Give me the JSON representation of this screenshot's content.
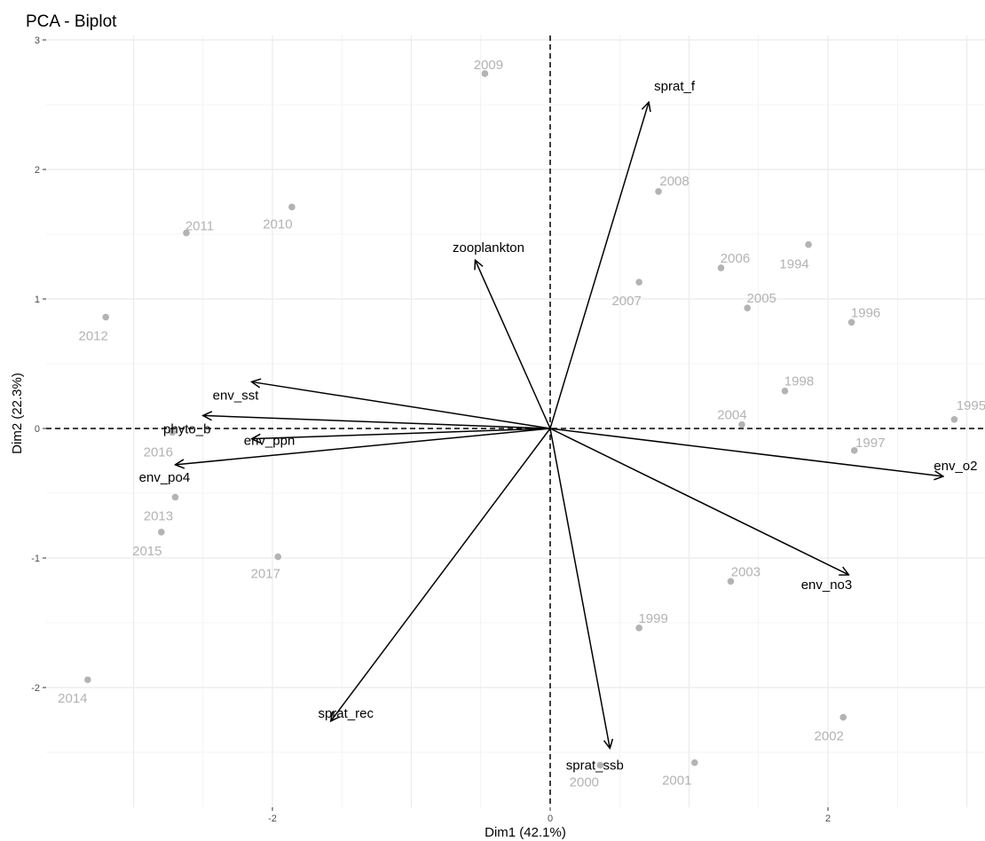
{
  "chart_data": {
    "type": "scatter",
    "title": "PCA - Biplot",
    "xlabel": "Dim1 (42.1%)",
    "ylabel": "Dim2 (22.3%)",
    "xlim": [
      -3.45,
      3.1
    ],
    "ylim": [
      -2.75,
      3.0
    ],
    "xticks": [
      -2,
      0,
      2
    ],
    "yticks": [
      -2,
      -1,
      0,
      1,
      2,
      3
    ],
    "grid": true,
    "colors": {
      "points": "#b3b3b3",
      "arrows": "#000000",
      "grid": "#ebebeb"
    },
    "points": [
      {
        "label": "1994",
        "x": 1.86,
        "y": 1.42
      },
      {
        "label": "1995",
        "x": 2.91,
        "y": 0.07
      },
      {
        "label": "1996",
        "x": 2.17,
        "y": 0.82
      },
      {
        "label": "1997",
        "x": 2.19,
        "y": -0.17
      },
      {
        "label": "1998",
        "x": 1.69,
        "y": 0.29
      },
      {
        "label": "1999",
        "x": 0.64,
        "y": -1.54
      },
      {
        "label": "2000",
        "x": 0.36,
        "y": -2.6
      },
      {
        "label": "2001",
        "x": 1.04,
        "y": -2.58
      },
      {
        "label": "2002",
        "x": 2.11,
        "y": -2.23
      },
      {
        "label": "2003",
        "x": 1.3,
        "y": -1.18
      },
      {
        "label": "2004",
        "x": 1.38,
        "y": 0.03
      },
      {
        "label": "2005",
        "x": 1.42,
        "y": 0.93
      },
      {
        "label": "2006",
        "x": 1.23,
        "y": 1.24
      },
      {
        "label": "2007",
        "x": 0.64,
        "y": 1.13
      },
      {
        "label": "2008",
        "x": 0.78,
        "y": 1.83
      },
      {
        "label": "2009",
        "x": -0.47,
        "y": 2.74
      },
      {
        "label": "2010",
        "x": -1.86,
        "y": 1.71
      },
      {
        "label": "2011",
        "x": -2.62,
        "y": 1.51
      },
      {
        "label": "2012",
        "x": -3.2,
        "y": 0.86
      },
      {
        "label": "2013",
        "x": -2.7,
        "y": -0.53
      },
      {
        "label": "2014",
        "x": -3.33,
        "y": -1.94
      },
      {
        "label": "2015",
        "x": -2.8,
        "y": -0.8
      },
      {
        "label": "2016",
        "x": -2.72,
        "y": -0.03
      },
      {
        "label": "2017",
        "x": -1.96,
        "y": -0.99
      }
    ],
    "variables": [
      {
        "name": "sprat_f",
        "x": 0.71,
        "y": 2.52
      },
      {
        "name": "zooplankton",
        "x": -0.54,
        "y": 1.3
      },
      {
        "name": "env_sst",
        "x": -2.15,
        "y": 0.36
      },
      {
        "name": "phyto_b",
        "x": -2.5,
        "y": 0.1
      },
      {
        "name": "env_ppn",
        "x": -2.15,
        "y": -0.08
      },
      {
        "name": "env_po4",
        "x": -2.7,
        "y": -0.28
      },
      {
        "name": "env_o2",
        "x": 2.83,
        "y": -0.37
      },
      {
        "name": "env_no3",
        "x": 2.15,
        "y": -1.13
      },
      {
        "name": "sprat_rec",
        "x": -1.58,
        "y": -2.26
      },
      {
        "name": "sprat_ssb",
        "x": 0.43,
        "y": -2.47
      }
    ]
  }
}
